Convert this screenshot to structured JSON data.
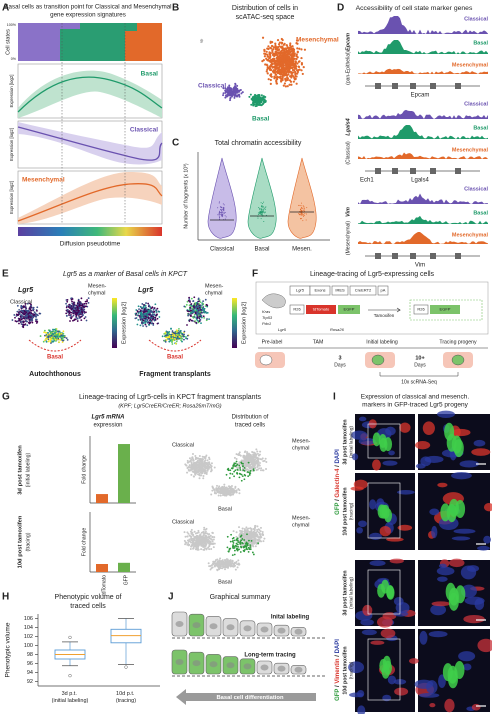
{
  "panels": {
    "A": {
      "letter": "A",
      "title": [
        "Basal cells as transition point for Classical and Mesenchymal",
        "gene expression signatures"
      ],
      "cell_states": "Cell states",
      "scale": [
        "100%",
        "0%"
      ],
      "curves": [
        "Basal",
        "Classical",
        "Mesenchymal"
      ],
      "y_label": "Expression [log2]",
      "x_label": "Diffusion pseudotime"
    },
    "B": {
      "letter": "B",
      "title": [
        "Distribution of cells in",
        "scATAC-seq space"
      ],
      "labels": [
        "Mesenchymal",
        "Classical",
        "Basal"
      ]
    },
    "C": {
      "letter": "C",
      "title": "Total chromatin accessibility",
      "y_label": "Number of fragments (x 10³)",
      "categories": [
        "Classical",
        "Basal",
        "Mesen."
      ]
    },
    "D": {
      "letter": "D",
      "title": "Accessibility of cell state marker genes",
      "tracks": [
        "Classical",
        "Basal",
        "Mesenchymal"
      ],
      "loci": [
        {
          "gene": "Epcam",
          "role": "(pan-Epithelial)",
          "genes": [
            "Epcam"
          ]
        },
        {
          "gene": "Lgals4",
          "role": "(Classical)",
          "genes": [
            "Ech1",
            "Lgals4"
          ]
        },
        {
          "gene": "Vim",
          "role": "(Mesenchymal)",
          "genes": [
            "Vim"
          ]
        }
      ]
    },
    "E": {
      "letter": "E",
      "title": "Lgr5 as a marker of Basal cells in KPCT",
      "gene": "Lgr5",
      "classical": "Classical",
      "mesenchymal": [
        "Mesen-",
        "chymal"
      ],
      "basal": "Basal",
      "panels": [
        "Autochthonous",
        "Fragment transplants"
      ],
      "colorbar": "Expression [log2]"
    },
    "F": {
      "letter": "F",
      "title": "Lineage-tracing of Lgr5-expressing cells",
      "mice": [
        "Kras",
        "Trp53",
        "Pdx1",
        "Lgr5",
        "Rosa26"
      ],
      "construct": [
        "Lgr5",
        "Exons",
        "IRES",
        "CreERT2",
        "pA",
        "R26",
        "tdTomato",
        "EGFP",
        "Tamoxifen"
      ],
      "timeline": [
        "Pre-label",
        "TAM",
        "3",
        "Days",
        "Initial labeling",
        "10+",
        "Days",
        "Tracing progeny",
        "10x scRNA-Seq"
      ]
    },
    "G": {
      "letter": "G",
      "title": "Lineage-tracing of Lgr5-cells in KPCT fragment transplants",
      "subtitle": "(KPF; Lgr5CreER/CreER; Rosa26mT/mG)",
      "columns": [
        [
          "Lgr5 mRNA",
          "expression"
        ],
        [
          "Distribution of",
          "traced cells"
        ]
      ],
      "rows": [
        [
          "3d post tamoxifen",
          "(initial labeling)"
        ],
        [
          "10d post tamoxifen",
          "(tracing)"
        ]
      ],
      "classical": "Classical",
      "mesenchymal": [
        "Mesen-",
        "chymal"
      ],
      "basal": "Basal"
    },
    "H": {
      "letter": "H"
    },
    "I": {
      "letter": "I",
      "title": [
        "Expression of classical and mesench.",
        "markers in GFP-traced Lgr5 progeny"
      ],
      "stains": [
        "GFP / Galectin-4 / DAPI",
        "GFP / Vimentin / DAPI"
      ],
      "rows": [
        [
          "3d post tamoxifen",
          "(initial labeling)"
        ],
        [
          "10d post tamoxifen",
          "(tracing)"
        ]
      ]
    },
    "J": {
      "letter": "J",
      "title": "Graphical summary",
      "stages": [
        "Inital labeling",
        "Long-term tracing"
      ],
      "arrow": "Basal cell differentiation"
    }
  },
  "chart_data": [
    {
      "type": "bar",
      "y_label": "Fold change",
      "categories": [
        null,
        null
      ],
      "values": [
        1,
        6.6
      ],
      "colors": [
        "#e2692a",
        "#6ab04c"
      ],
      "ylim": [
        0,
        7.5
      ]
    },
    {
      "type": "bar",
      "y_label": "Fold change",
      "categories": [
        "tdTomato",
        "GFP"
      ],
      "values": [
        1,
        1.15
      ],
      "colors": [
        "#e2692a",
        "#6ab04c"
      ],
      "ylim": [
        0,
        7.5
      ]
    },
    {
      "type": "box",
      "title": [
        "Phenotypic volume of",
        "traced cells"
      ],
      "y_label": "Phenotypic volume",
      "categories": [
        "3d p.t. (initial labeling)",
        "10d p.t. (tracing)"
      ],
      "boxes": [
        {
          "whisker_low": 95.5,
          "q1": 97,
          "median": 98,
          "q3": 99,
          "whisker_high": 100.8,
          "outliers": [
            93.3,
            101.8
          ]
        },
        {
          "whisker_low": 95.8,
          "q1": 100.6,
          "median": 102.2,
          "q3": 103.6,
          "whisker_high": 106,
          "outliers": [
            95.2
          ]
        }
      ],
      "color": "#5b9bd5",
      "median_color": "#f0a030",
      "ylim": [
        91,
        107
      ],
      "yticks": [
        92,
        94,
        96,
        98,
        100,
        102,
        104,
        106
      ]
    }
  ]
}
